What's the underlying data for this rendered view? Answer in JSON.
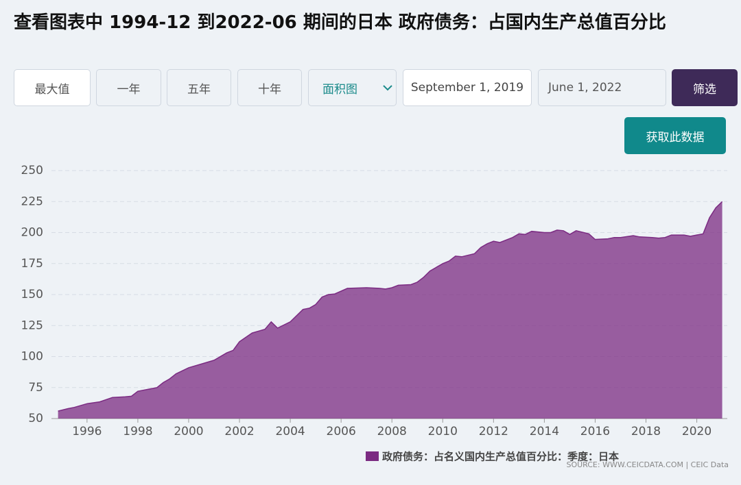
{
  "header": {
    "title": "查看图表中 1994-12 到2022-06 期间的日本 政府债务：占国内生产总值百分比"
  },
  "controls": {
    "ranges": [
      "最大值",
      "一年",
      "五年",
      "十年"
    ],
    "chart_type": "面积图",
    "start_date": "September 1, 2019",
    "end_date": "June 1, 2022",
    "filter": "筛选",
    "get_data": "获取此数据"
  },
  "chart_data": {
    "type": "area",
    "x": [
      1994.86,
      1995.25,
      1995.5,
      1996.0,
      1996.5,
      1997.0,
      1997.5,
      1997.75,
      1998.0,
      1998.5,
      1998.75,
      1999.0,
      1999.25,
      1999.5,
      2000.0,
      2000.5,
      2001.0,
      2001.5,
      2001.75,
      2002.0,
      2002.5,
      2003.0,
      2003.25,
      2003.5,
      2004.0,
      2004.5,
      2004.75,
      2005.0,
      2005.25,
      2005.5,
      2005.75,
      2006.25,
      2007.0,
      2007.5,
      2007.75,
      2008.0,
      2008.25,
      2008.75,
      2009.0,
      2009.25,
      2009.5,
      2010.0,
      2010.25,
      2010.5,
      2010.75,
      2011.25,
      2011.5,
      2011.75,
      2012.0,
      2012.25,
      2012.75,
      2013.0,
      2013.25,
      2013.5,
      2014.0,
      2014.25,
      2014.5,
      2014.75,
      2015.0,
      2015.25,
      2015.75,
      2016.0,
      2016.5,
      2016.75,
      2017.0,
      2017.5,
      2017.75,
      2018.25,
      2018.5,
      2018.75,
      2019.0,
      2019.5,
      2019.75,
      2020.25,
      2020.5,
      2020.75,
      2021.0
    ],
    "series": [
      {
        "name": "政府债务：占名义国内生产总值百分比：季度：日本",
        "color": "#7b2b82",
        "values": [
          56,
          58,
          59,
          62,
          63.5,
          67,
          67.5,
          68,
          72,
          74,
          75,
          79,
          82,
          86,
          91,
          94,
          97,
          103,
          105,
          112,
          119,
          122,
          128,
          123,
          128,
          138,
          139,
          142,
          148,
          150,
          150.5,
          155,
          155.5,
          155,
          154.5,
          155.5,
          157.5,
          158,
          160,
          164,
          169,
          175,
          177,
          181,
          180.5,
          183,
          188,
          191,
          193,
          192,
          196,
          199,
          198.5,
          201,
          200,
          200,
          202,
          201.5,
          198.5,
          201.5,
          199,
          194.5,
          195,
          196,
          196,
          197.5,
          196.5,
          196,
          195.5,
          196,
          198,
          198,
          197,
          199,
          212,
          220,
          225
        ]
      }
    ],
    "xlim": [
      1994.6,
      2021.2
    ],
    "xticks": [
      1996,
      1998,
      2000,
      2002,
      2004,
      2006,
      2008,
      2010,
      2012,
      2014,
      2016,
      2018,
      2020
    ],
    "ylim": [
      50,
      250
    ],
    "yticks": [
      50,
      75,
      100,
      125,
      150,
      175,
      200,
      225,
      250
    ],
    "grid": true,
    "source": "SOURCE: WWW.CEICDATA.COM | CEIC Data"
  }
}
